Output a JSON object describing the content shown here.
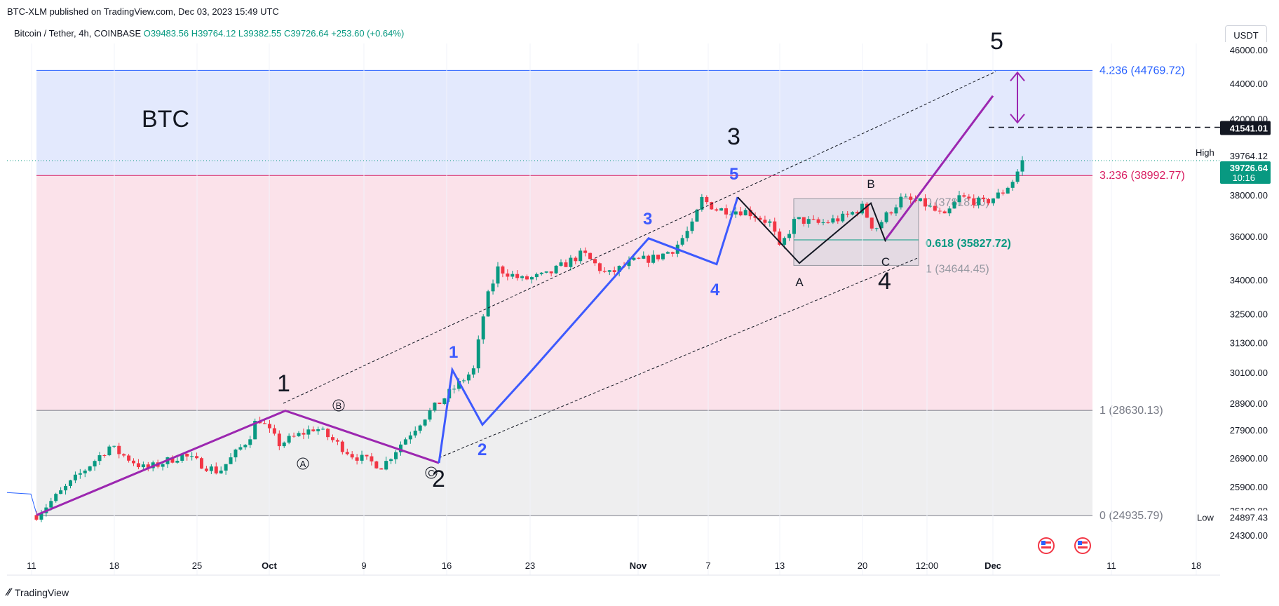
{
  "header": {
    "publish_line": "BTC-XLM published on TradingView.com, Dec 03, 2023 15:49 UTC",
    "symbol": "Bitcoin / Tether, 4h, COINBASE",
    "ohlc": "O39483.56 H39764.12 L39382.55 C39726.64 +253.60 (+0.64%)"
  },
  "currency": "USDT",
  "footer_brand": "TradingView",
  "chart_data": {
    "type": "candlestick",
    "title": "BTC",
    "price_scale": {
      "ticks": [
        46000,
        44000,
        42000,
        38000,
        36000,
        34000,
        32500,
        31300,
        30100,
        28900,
        27900,
        26900,
        25900,
        25100,
        24300
      ],
      "tick_labels": [
        "46000.00",
        "44000.00",
        "42000.00",
        "38000.00",
        "36000.00",
        "34000.00",
        "32500.00",
        "31300.00",
        "30100.00",
        "28900.00",
        "27900.00",
        "26900.00",
        "25900.00",
        "25100.00",
        "24300.00"
      ],
      "log": true
    },
    "time_scale": [
      "11",
      "18",
      "25",
      "Oct",
      "9",
      "16",
      "23",
      "Nov",
      "7",
      "13",
      "20",
      "12:00",
      "Dec",
      "11",
      "18"
    ],
    "price_labels": {
      "high_label": "High",
      "high_value": "39764.12",
      "low_label": "Low",
      "low_value": "24897.43",
      "current_value": "39726.64",
      "current_countdown": "10:16",
      "target_value": "41541.01"
    },
    "fib_levels": [
      {
        "ratio": "4.236",
        "label": "4.236 (44769.72)",
        "price": 44769.72,
        "color": "#2962ff"
      },
      {
        "ratio": "3.236",
        "label": "3.236 (38992.77)",
        "price": 38992.77,
        "color": "#d81b60"
      },
      {
        "ratio": "1",
        "label": "1 (28630.13)",
        "price": 28630.13,
        "color": "#787b86"
      },
      {
        "ratio": "0",
        "label": "0 (24935.79)",
        "price": 24935.79,
        "color": "#787b86"
      }
    ],
    "wave4_fib": [
      {
        "label": "0 (37818.20)",
        "price": 37818.2,
        "color": "#9598a1"
      },
      {
        "label": "0.618 (35827.72)",
        "price": 35827.72,
        "color": "#089981"
      },
      {
        "label": "1 (34644.45)",
        "price": 34644.45,
        "color": "#9598a1"
      }
    ],
    "wave_labels": {
      "major": [
        "1",
        "2",
        "3",
        "4",
        "5"
      ],
      "minor": [
        "1",
        "2",
        "3",
        "4",
        "5"
      ],
      "correction_circled": [
        "A",
        "B",
        "C"
      ],
      "abc": [
        "A",
        "B",
        "C"
      ]
    },
    "candles_ohlc_note": "",
    "path_anchor_prices": [
      {
        "t": 0,
        "p": 24950
      },
      {
        "t": 30,
        "p": 26100
      },
      {
        "t": 60,
        "p": 27300
      },
      {
        "t": 90,
        "p": 26500
      },
      {
        "t": 120,
        "p": 27000
      },
      {
        "t": 150,
        "p": 26400
      },
      {
        "t": 175,
        "p": 27600
      },
      {
        "t": 182,
        "p": 28400
      },
      {
        "t": 200,
        "p": 27400
      },
      {
        "t": 230,
        "p": 28000
      },
      {
        "t": 260,
        "p": 27000
      },
      {
        "t": 285,
        "p": 26600
      },
      {
        "t": 300,
        "p": 27400
      },
      {
        "t": 320,
        "p": 28400
      },
      {
        "t": 340,
        "p": 29300
      },
      {
        "t": 360,
        "p": 30200
      },
      {
        "t": 370,
        "p": 33000
      },
      {
        "t": 380,
        "p": 34500
      },
      {
        "t": 400,
        "p": 34000
      },
      {
        "t": 420,
        "p": 34200
      },
      {
        "t": 450,
        "p": 35200
      },
      {
        "t": 470,
        "p": 34200
      },
      {
        "t": 490,
        "p": 34800
      },
      {
        "t": 510,
        "p": 35000
      },
      {
        "t": 525,
        "p": 35400
      },
      {
        "t": 540,
        "p": 36500
      },
      {
        "t": 548,
        "p": 37800
      },
      {
        "t": 560,
        "p": 37300
      },
      {
        "t": 585,
        "p": 37200
      },
      {
        "t": 605,
        "p": 36600
      },
      {
        "t": 612,
        "p": 35400
      },
      {
        "t": 625,
        "p": 36800
      },
      {
        "t": 645,
        "p": 36600
      },
      {
        "t": 665,
        "p": 36900
      },
      {
        "t": 680,
        "p": 37400
      },
      {
        "t": 690,
        "p": 36300
      },
      {
        "t": 700,
        "p": 37000
      },
      {
        "t": 712,
        "p": 37800
      },
      {
        "t": 730,
        "p": 37600
      },
      {
        "t": 748,
        "p": 36900
      },
      {
        "t": 760,
        "p": 37900
      },
      {
        "t": 780,
        "p": 37600
      },
      {
        "t": 795,
        "p": 38100
      },
      {
        "t": 805,
        "p": 38800
      },
      {
        "t": 812,
        "p": 39726
      }
    ]
  }
}
